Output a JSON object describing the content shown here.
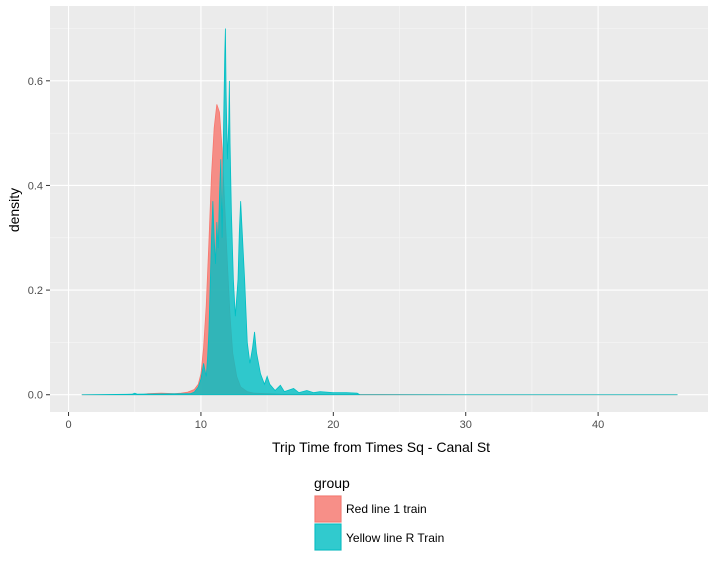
{
  "chart_data": {
    "type": "area",
    "xlabel": "Trip Time from Times Sq - Canal St",
    "ylabel": "density",
    "xlim": [
      0,
      46
    ],
    "ylim": [
      0,
      0.7
    ],
    "x_ticks": [
      {
        "value": 0,
        "label": "0"
      },
      {
        "value": 10,
        "label": "10"
      },
      {
        "value": 20,
        "label": "20"
      },
      {
        "value": 30,
        "label": "30"
      },
      {
        "value": 40,
        "label": "40"
      }
    ],
    "y_ticks": [
      {
        "value": 0.0,
        "label": "0.0"
      },
      {
        "value": 0.2,
        "label": "0.2"
      },
      {
        "value": 0.4,
        "label": "0.4"
      },
      {
        "value": 0.6,
        "label": "0.6"
      }
    ],
    "grid": true,
    "legend": {
      "title": "group",
      "position": "bottom"
    },
    "series": [
      {
        "name": "Red line 1 train",
        "color": "#F8766D",
        "points": [
          [
            1,
            0
          ],
          [
            5.5,
            0
          ],
          [
            6,
            0.002
          ],
          [
            7,
            0.003
          ],
          [
            8,
            0.002
          ],
          [
            8.5,
            0.003
          ],
          [
            9,
            0.005
          ],
          [
            9.5,
            0.01
          ],
          [
            9.8,
            0.02
          ],
          [
            10.0,
            0.04
          ],
          [
            10.2,
            0.09
          ],
          [
            10.4,
            0.17
          ],
          [
            10.6,
            0.29
          ],
          [
            10.8,
            0.42
          ],
          [
            11.0,
            0.51
          ],
          [
            11.2,
            0.555
          ],
          [
            11.4,
            0.54
          ],
          [
            11.6,
            0.47
          ],
          [
            11.8,
            0.36
          ],
          [
            12.0,
            0.25
          ],
          [
            12.2,
            0.15
          ],
          [
            12.4,
            0.08
          ],
          [
            12.7,
            0.035
          ],
          [
            13.0,
            0.015
          ],
          [
            13.5,
            0.006
          ],
          [
            14,
            0.003
          ],
          [
            16,
            0.001
          ],
          [
            20,
            0.0005
          ],
          [
            30,
            0
          ],
          [
            46,
            0
          ]
        ]
      },
      {
        "name": "Yellow line R Train",
        "color": "#00BFC4",
        "points": [
          [
            1,
            0
          ],
          [
            4.8,
            0.001
          ],
          [
            5.0,
            0.003
          ],
          [
            5.2,
            0.001
          ],
          [
            9.2,
            0.002
          ],
          [
            9.5,
            0.005
          ],
          [
            9.8,
            0.015
          ],
          [
            10.0,
            0.03
          ],
          [
            10.2,
            0.06
          ],
          [
            10.4,
            0.035
          ],
          [
            10.5,
            0.07
          ],
          [
            10.6,
            0.12
          ],
          [
            10.8,
            0.3
          ],
          [
            10.9,
            0.37
          ],
          [
            11.0,
            0.3
          ],
          [
            11.1,
            0.25
          ],
          [
            11.2,
            0.33
          ],
          [
            11.3,
            0.28
          ],
          [
            11.4,
            0.38
          ],
          [
            11.5,
            0.45
          ],
          [
            11.6,
            0.3
          ],
          [
            11.7,
            0.5
          ],
          [
            11.8,
            0.65
          ],
          [
            11.85,
            0.7
          ],
          [
            11.9,
            0.58
          ],
          [
            12.0,
            0.45
          ],
          [
            12.1,
            0.52
          ],
          [
            12.15,
            0.6
          ],
          [
            12.2,
            0.48
          ],
          [
            12.3,
            0.35
          ],
          [
            12.45,
            0.22
          ],
          [
            12.6,
            0.15
          ],
          [
            12.8,
            0.22
          ],
          [
            12.9,
            0.31
          ],
          [
            13.0,
            0.37
          ],
          [
            13.1,
            0.32
          ],
          [
            13.3,
            0.22
          ],
          [
            13.5,
            0.1
          ],
          [
            13.7,
            0.06
          ],
          [
            13.9,
            0.09
          ],
          [
            14.05,
            0.12
          ],
          [
            14.2,
            0.08
          ],
          [
            14.5,
            0.04
          ],
          [
            14.8,
            0.02
          ],
          [
            15.0,
            0.035
          ],
          [
            15.2,
            0.02
          ],
          [
            15.6,
            0.008
          ],
          [
            16.0,
            0.018
          ],
          [
            16.3,
            0.006
          ],
          [
            17.0,
            0.012
          ],
          [
            17.4,
            0.004
          ],
          [
            18.0,
            0.008
          ],
          [
            18.5,
            0.004
          ],
          [
            19.0,
            0.006
          ],
          [
            20.0,
            0.004
          ],
          [
            21.0,
            0.004
          ],
          [
            21.8,
            0.003
          ],
          [
            22,
            0
          ],
          [
            46,
            0
          ]
        ]
      }
    ]
  }
}
